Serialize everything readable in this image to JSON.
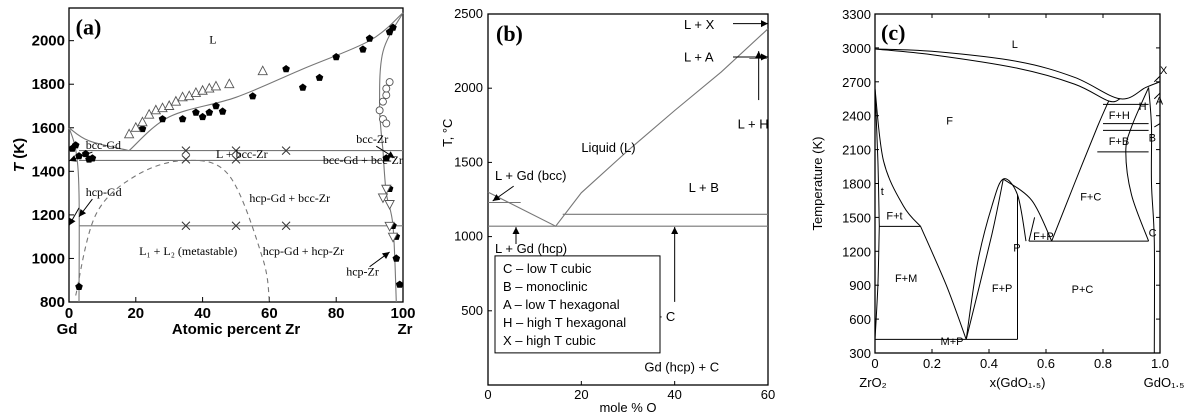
{
  "chart_data": [
    {
      "panel": "(a)",
      "type": "line",
      "ylabel_var": "T",
      "ylabel_unit": "(K)",
      "xlabel": "Atomic percent Zr",
      "xlim": [
        0,
        100
      ],
      "ylim": [
        800,
        2150
      ],
      "x_ticks": [
        "0",
        "20",
        "40",
        "60",
        "80",
        "100"
      ],
      "y_ticks": [
        "800",
        "1000",
        "1200",
        "1400",
        "1600",
        "1800",
        "2000"
      ],
      "x_end_labels": [
        "Gd",
        "Zr"
      ],
      "regions": [
        "L",
        "bcc-Gd",
        "L + bcc-Zr",
        "bcc-Zr",
        "hcp-Gd",
        "bcc-Gd + bcc-Zr",
        "hcp-Gd + bcc-Zr",
        "L₁ + L₂ (metastable)",
        "hcp-Gd + hcp-Zr",
        "hcp-Zr"
      ],
      "liquidus_left": [
        [
          0,
          1600
        ],
        [
          6,
          1540
        ],
        [
          18,
          1495
        ]
      ],
      "liquidus_right": [
        [
          18,
          1495
        ],
        [
          30,
          1650
        ],
        [
          50,
          1740
        ],
        [
          70,
          1870
        ],
        [
          90,
          2000
        ],
        [
          100,
          2128
        ]
      ],
      "eutectic_T": 1495,
      "monotectoid_T": 1450,
      "eutectoid_T": 1150,
      "miscibility_gap": [
        [
          2,
          830
        ],
        [
          8,
          1200
        ],
        [
          20,
          1380
        ],
        [
          35,
          1450
        ],
        [
          48,
          1380
        ],
        [
          58,
          1000
        ],
        [
          60,
          800
        ]
      ],
      "filled_points": [
        [
          1,
          1505
        ],
        [
          2,
          1520
        ],
        [
          3,
          1470
        ],
        [
          5,
          1480
        ],
        [
          6,
          1455
        ],
        [
          22,
          1595
        ],
        [
          28,
          1640
        ],
        [
          34,
          1640
        ],
        [
          38,
          1670
        ],
        [
          40,
          1650
        ],
        [
          42,
          1670
        ],
        [
          44,
          1700
        ],
        [
          46,
          1675
        ],
        [
          55,
          1745
        ],
        [
          65,
          1870
        ],
        [
          70,
          1785
        ],
        [
          75,
          1830
        ],
        [
          80,
          1925
        ],
        [
          88,
          1960
        ],
        [
          90,
          2010
        ],
        [
          96,
          2040
        ],
        [
          97,
          2060
        ],
        [
          95,
          1460
        ],
        [
          96,
          1320
        ],
        [
          97,
          1150
        ],
        [
          98,
          1100
        ],
        [
          98,
          1000
        ],
        [
          99,
          880
        ],
        [
          3,
          870
        ],
        [
          7,
          1460
        ]
      ],
      "open_up_triangles": [
        [
          18,
          1570
        ],
        [
          20,
          1600
        ],
        [
          22,
          1625
        ],
        [
          24,
          1660
        ],
        [
          26,
          1680
        ],
        [
          28,
          1690
        ],
        [
          30,
          1700
        ],
        [
          32,
          1720
        ],
        [
          34,
          1740
        ],
        [
          36,
          1745
        ],
        [
          38,
          1760
        ],
        [
          40,
          1770
        ],
        [
          42,
          1780
        ],
        [
          44,
          1790
        ],
        [
          48,
          1800
        ],
        [
          58,
          1860
        ]
      ],
      "open_down_triangles": [
        [
          94,
          1280
        ],
        [
          95,
          1320
        ],
        [
          96,
          1150
        ],
        [
          96,
          1250
        ],
        [
          97,
          1100
        ]
      ],
      "open_circles": [
        [
          93,
          1680
        ],
        [
          94,
          1720
        ],
        [
          95,
          1750
        ],
        [
          95,
          1780
        ],
        [
          96,
          1810
        ],
        [
          94,
          1640
        ],
        [
          95,
          1620
        ]
      ],
      "crosses": [
        [
          35,
          1495
        ],
        [
          50,
          1495
        ],
        [
          65,
          1495
        ],
        [
          35,
          1455
        ],
        [
          50,
          1455
        ],
        [
          35,
          1150
        ],
        [
          50,
          1150
        ],
        [
          65,
          1150
        ]
      ]
    },
    {
      "panel": "(b)",
      "type": "line",
      "ylabel": "T, °C",
      "xlabel": "mole % O",
      "xlim": [
        0,
        60
      ],
      "ylim": [
        0,
        2500
      ],
      "x_ticks": [
        "0",
        "20",
        "40",
        "60"
      ],
      "y_ticks": [
        "500",
        "1000",
        "1500",
        "2000",
        "2500"
      ],
      "liquidus": [
        [
          0,
          1300
        ],
        [
          14.5,
          1070
        ],
        [
          20,
          1295
        ],
        [
          30,
          1580
        ],
        [
          40,
          1850
        ],
        [
          50,
          2110
        ],
        [
          60,
          2400
        ]
      ],
      "horizontal_lines": [
        {
          "T": 1230,
          "x": [
            0,
            7
          ]
        },
        {
          "T": 1150,
          "x": [
            16,
            60
          ]
        },
        {
          "T": 1070,
          "x": [
            0,
            60
          ]
        },
        {
          "T": 2200,
          "x": [
            56,
            60
          ]
        }
      ],
      "labels": [
        "Liquid (L)",
        "L + Gd (bcc)",
        "L + Gd (hcp)",
        "L + B",
        "L + C",
        "Gd (hcp) + C",
        "L + X",
        "L + A",
        "L + H"
      ],
      "legend": [
        "C – low T cubic",
        "B – monoclinic",
        "A – low T hexagonal",
        "H – high T hexagonal",
        "X – high T cubic"
      ]
    },
    {
      "panel": "(c)",
      "type": "line",
      "ylabel": "Temperature (K)",
      "xlabel": "x(GdO₁.₅)",
      "xlim": [
        0,
        1.0
      ],
      "ylim": [
        300,
        3300
      ],
      "x_ticks": [
        "0",
        "0.2",
        "0.4",
        "0.6",
        "0.8",
        "1.0"
      ],
      "y_ticks": [
        "300",
        "600",
        "900",
        "1200",
        "1500",
        "1800",
        "2100",
        "2400",
        "2700",
        "3000",
        "3300"
      ],
      "x_end_labels": [
        "ZrO₂",
        "GdO₁.₅"
      ],
      "regions": [
        "L",
        "F",
        "t",
        "F+t",
        "F+M",
        "F+P",
        "M+P",
        "P",
        "F+P",
        "F+C",
        "P+C",
        "F+H",
        "F+B",
        "H",
        "A",
        "X",
        "B",
        "C"
      ],
      "liquidus": [
        [
          0,
          2990
        ],
        [
          0.2,
          2970
        ],
        [
          0.5,
          2880
        ],
        [
          0.7,
          2740
        ],
        [
          0.86,
          2550
        ],
        [
          0.95,
          2650
        ],
        [
          1.0,
          2700
        ]
      ],
      "solidus": [
        [
          0,
          2990
        ],
        [
          0.2,
          2940
        ],
        [
          0.5,
          2820
        ],
        [
          0.7,
          2680
        ],
        [
          0.82,
          2530
        ],
        [
          0.86,
          2550
        ]
      ],
      "isotherms": [
        {
          "T": 2500,
          "x": [
            0.8,
            0.96
          ]
        },
        {
          "T": 2330,
          "x": [
            0.8,
            0.96
          ]
        },
        {
          "T": 2270,
          "x": [
            0.8,
            0.96
          ]
        },
        {
          "T": 2080,
          "x": [
            0.78,
            0.96
          ]
        },
        {
          "T": 1420,
          "x": [
            0.015,
            0.16
          ]
        },
        {
          "T": 1290,
          "x": [
            0.54,
            0.96
          ]
        },
        {
          "T": 420,
          "x": [
            0,
            0.5
          ]
        }
      ]
    }
  ]
}
